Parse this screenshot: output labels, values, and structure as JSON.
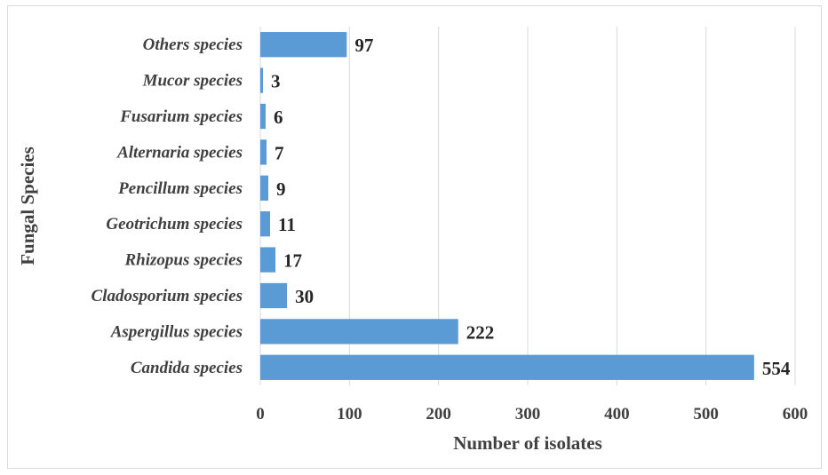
{
  "chart_data": {
    "type": "bar",
    "orientation": "horizontal",
    "categories": [
      "Others species",
      "Mucor species",
      "Fusarium species",
      "Alternaria species",
      "Pencillum species",
      "Geotrichum species",
      "Rhizopus species",
      "Cladosporium species",
      "Aspergillus species",
      "Candida species"
    ],
    "values": [
      97,
      3,
      6,
      7,
      9,
      11,
      17,
      30,
      222,
      554
    ],
    "xlabel": "Number of isolates",
    "ylabel": "Fungal Species",
    "xlim": [
      0,
      600
    ],
    "xticks": [
      0,
      100,
      200,
      300,
      400,
      500,
      600
    ],
    "grid": "vertical",
    "data_labels": true,
    "bar_color": "#5b9bd5"
  }
}
